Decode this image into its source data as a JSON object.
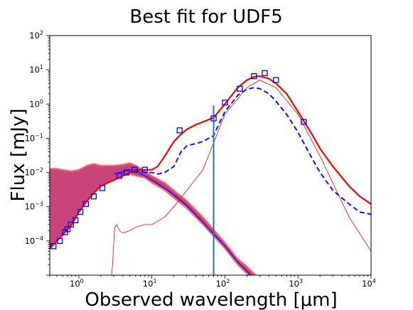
{
  "chart_data": {
    "type": "line",
    "title": "Best fit for UDF5",
    "xlabel": "Observed wavelength [μm]",
    "ylabel": "Flux [mJy]",
    "xscale": "log",
    "yscale": "log",
    "xlim": [
      0.4,
      10000
    ],
    "ylim": [
      1e-05,
      100
    ],
    "grid": false,
    "x_ticks": [
      {
        "base": "10",
        "exp": "0",
        "value": 1
      },
      {
        "base": "10",
        "exp": "1",
        "value": 10
      },
      {
        "base": "10",
        "exp": "2",
        "value": 100
      },
      {
        "base": "10",
        "exp": "3",
        "value": 1000
      },
      {
        "base": "10",
        "exp": "4",
        "value": 10000
      }
    ],
    "y_ticks": [
      {
        "base": "10",
        "exp": "−4",
        "value": 0.0001
      },
      {
        "base": "10",
        "exp": "−3",
        "value": 0.001
      },
      {
        "base": "10",
        "exp": "−2",
        "value": 0.01
      },
      {
        "base": "10",
        "exp": "−1",
        "value": 0.1
      },
      {
        "base": "10",
        "exp": "0",
        "value": 1
      },
      {
        "base": "10",
        "exp": "1",
        "value": 10
      },
      {
        "base": "10",
        "exp": "2",
        "value": 100
      }
    ],
    "colors": {
      "total_fit": "#ff0000",
      "blue_model": "#1010ff",
      "stellar_band_fill": "#c4306e",
      "stellar_band_edge": "#ff7070",
      "marker_line": "#1f77b4",
      "observed": "#0000ff"
    },
    "series": [
      {
        "style": "solid-red",
        "x": [
          0.4,
          0.5,
          0.6,
          0.8,
          1.0,
          1.3,
          1.6,
          2.0,
          3.0,
          4.0,
          5.0,
          6.0,
          7.0,
          8.0,
          10,
          12,
          15,
          20,
          25,
          30,
          40,
          50,
          70,
          100,
          150,
          200,
          250,
          300,
          400,
          500,
          700,
          1000,
          1500,
          2000,
          3000,
          5000,
          7000,
          10000
        ],
        "y": [
          6e-05,
          0.0001,
          0.00015,
          0.0003,
          0.0007,
          0.0015,
          0.0025,
          0.004,
          0.006,
          0.008,
          0.01,
          0.012,
          0.012,
          0.012,
          0.012,
          0.015,
          0.03,
          0.08,
          0.13,
          0.18,
          0.25,
          0.3,
          0.4,
          1.0,
          3.0,
          5.0,
          6.2,
          6.5,
          5.5,
          4.0,
          2.0,
          0.6,
          0.15,
          0.05,
          0.015,
          0.004,
          0.002,
          0.0012
        ]
      },
      {
        "style": "dashed-blue",
        "x": [
          0.4,
          0.5,
          0.6,
          0.8,
          1.0,
          1.3,
          1.6,
          2.0,
          3.0,
          4.0,
          5.0,
          6.0,
          7.0,
          8.0,
          10,
          12,
          15,
          20,
          25,
          30,
          40,
          50,
          70,
          100,
          150,
          200,
          250,
          300,
          400,
          500,
          700,
          1000,
          1500,
          2000,
          3000,
          5000,
          7000,
          10000
        ],
        "y": [
          6e-05,
          0.0001,
          0.00015,
          0.0003,
          0.0007,
          0.0015,
          0.0025,
          0.004,
          0.006,
          0.008,
          0.01,
          0.011,
          0.011,
          0.01,
          0.01,
          0.009,
          0.01,
          0.015,
          0.04,
          0.06,
          0.07,
          0.08,
          0.12,
          0.6,
          1.8,
          2.7,
          3.0,
          2.8,
          2.0,
          1.2,
          0.5,
          0.15,
          0.03,
          0.01,
          0.003,
          0.0012,
          0.0007,
          0.0006
        ]
      },
      {
        "style": "band-red",
        "x": [
          0.4,
          0.5,
          0.6,
          0.8,
          1.0,
          1.3,
          1.6,
          2.0,
          3.0,
          4.0,
          5.0,
          6.0,
          8.0,
          10,
          15,
          20,
          30,
          50,
          100,
          150,
          200,
          300
        ],
        "y_upper": [
          0.013,
          0.013,
          0.012,
          0.011,
          0.012,
          0.016,
          0.018,
          0.016,
          0.016,
          0.017,
          0.019,
          0.016,
          0.011,
          0.008,
          0.005,
          0.003,
          0.0015,
          0.0005,
          9e-05,
          3e-05,
          1.8e-05,
          7.5e-06
        ],
        "y_lower": [
          6e-05,
          0.0001,
          0.00015,
          0.0003,
          0.0007,
          0.0015,
          0.0025,
          0.004,
          0.006,
          0.008,
          0.009,
          0.008,
          0.007,
          0.005,
          0.003,
          0.0018,
          0.0009,
          0.0003,
          6e-05,
          2e-05,
          1.1e-05,
          5e-06
        ]
      },
      {
        "style": "thin-blue",
        "x": [
          3.0,
          5.0,
          6.0,
          8.0,
          10,
          15,
          20,
          30,
          50,
          100,
          150,
          200,
          300
        ],
        "y": [
          0.009,
          0.012,
          0.011,
          0.008,
          0.006,
          0.0035,
          0.0022,
          0.0011,
          0.00035,
          7e-05,
          2.4e-05,
          1.3e-05,
          5.5e-06
        ]
      },
      {
        "style": "thin-red",
        "x": [
          2.8,
          2.9,
          3.0,
          3.1,
          3.3,
          3.6,
          4.0,
          5.0,
          6.0,
          8.0,
          10,
          15,
          20,
          30,
          50,
          100,
          200,
          300,
          500,
          1000,
          2000,
          5000,
          10000
        ],
        "y": [
          1e-05,
          2e-05,
          8e-05,
          0.00025,
          0.0003,
          0.0002,
          0.00017,
          0.0002,
          0.00025,
          0.0003,
          0.0003,
          0.0005,
          0.001,
          0.003,
          0.012,
          0.5,
          3.0,
          5.0,
          3.0,
          0.5,
          0.03,
          0.0005,
          5e-05
        ]
      },
      {
        "style": "observed-squares",
        "x": [
          0.45,
          0.55,
          0.65,
          0.7,
          0.78,
          0.9,
          1.05,
          1.25,
          1.6,
          2.1,
          3.6,
          4.5,
          5.8,
          8.0,
          24,
          70,
          100,
          160,
          250,
          350,
          500,
          1200
        ],
        "y": [
          7e-05,
          0.0001,
          0.00018,
          0.00022,
          0.0003,
          0.0004,
          0.0007,
          0.0012,
          0.002,
          0.0035,
          0.008,
          0.01,
          0.012,
          0.012,
          0.17,
          0.38,
          1.1,
          2.8,
          6.5,
          8.0,
          5.0,
          0.3
        ]
      }
    ],
    "vertical_line": {
      "x": 70,
      "y_top": 0.9,
      "y_bottom": 1e-05
    }
  }
}
